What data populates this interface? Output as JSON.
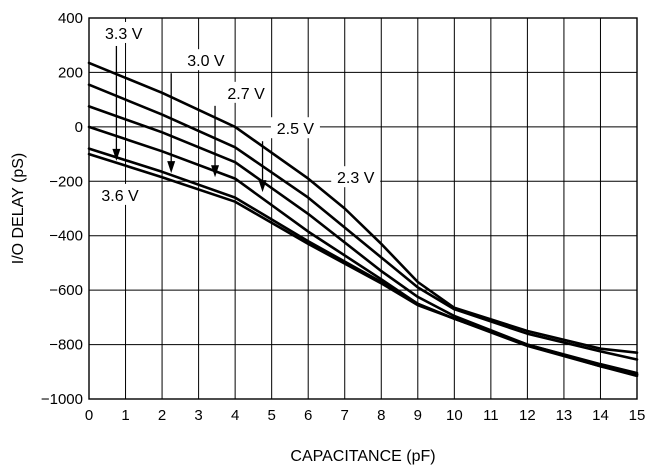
{
  "chart_data": {
    "type": "line",
    "title": "",
    "xlabel": "CAPACITANCE (pF)",
    "ylabel": "I/O DELAY (pS)",
    "xlim": [
      0,
      15
    ],
    "ylim": [
      -1000,
      400
    ],
    "x_ticks": [
      0,
      1,
      2,
      3,
      4,
      5,
      6,
      7,
      8,
      9,
      10,
      11,
      12,
      13,
      14,
      15
    ],
    "y_ticks": [
      400,
      200,
      0,
      -200,
      -400,
      -600,
      -800,
      -1000
    ],
    "y_tick_labels": [
      "400",
      "200",
      "0",
      "−200",
      "−400",
      "−600",
      "−800",
      "−1000"
    ],
    "grid": true,
    "series": [
      {
        "name": "2.3 V",
        "x": [
          0,
          2,
          4,
          6,
          7,
          8,
          9,
          10,
          12,
          14,
          15
        ],
        "values": [
          235,
          125,
          0,
          -190,
          -300,
          -430,
          -570,
          -665,
          -750,
          -815,
          -830
        ]
      },
      {
        "name": "2.5 V",
        "x": [
          0,
          2,
          4,
          6,
          8,
          9,
          10,
          12,
          14,
          15
        ],
        "values": [
          155,
          45,
          -75,
          -260,
          -480,
          -590,
          -670,
          -760,
          -825,
          -855
        ]
      },
      {
        "name": "2.7 V",
        "x": [
          0,
          2,
          4,
          6,
          8,
          9,
          10,
          12,
          14,
          15
        ],
        "values": [
          75,
          -20,
          -130,
          -320,
          -530,
          -625,
          -695,
          -800,
          -880,
          -910
        ]
      },
      {
        "name": "3.0 V",
        "x": [
          0,
          2,
          4,
          6,
          8,
          9,
          10,
          12,
          14,
          15
        ],
        "values": [
          0,
          -90,
          -190,
          -385,
          -560,
          -650,
          -705,
          -805,
          -880,
          -915
        ]
      },
      {
        "name": "3.3 V",
        "x": [
          0,
          2,
          4,
          6,
          8,
          9,
          10,
          12,
          14,
          15
        ],
        "values": [
          -80,
          -165,
          -260,
          -420,
          -570,
          -650,
          -705,
          -800,
          -875,
          -910
        ]
      },
      {
        "name": "3.6 V",
        "x": [
          0,
          2,
          4,
          6,
          8,
          9,
          10,
          12,
          14,
          15
        ],
        "values": [
          -100,
          -185,
          -275,
          -430,
          -575,
          -655,
          -705,
          -800,
          -872,
          -905
        ]
      }
    ],
    "annotations": [
      {
        "text": "3.3 V",
        "x": 0.95,
        "y": 345,
        "arrow_tip": [
          0.75,
          -125
        ]
      },
      {
        "text": "3.0 V",
        "x": 3.2,
        "y": 245,
        "arrow_tip": [
          2.25,
          -170
        ]
      },
      {
        "text": "2.7 V",
        "x": 4.3,
        "y": 125,
        "arrow_tip": [
          3.45,
          -185
        ]
      },
      {
        "text": "2.5 V",
        "x": 5.65,
        "y": -5,
        "arrow_tip": [
          4.75,
          -240
        ]
      },
      {
        "text": "2.3 V",
        "x": 7.3,
        "y": -185,
        "arrow_tip": null
      },
      {
        "text": "3.6 V",
        "x": 0.85,
        "y": -250,
        "arrow_tip": null
      }
    ]
  }
}
